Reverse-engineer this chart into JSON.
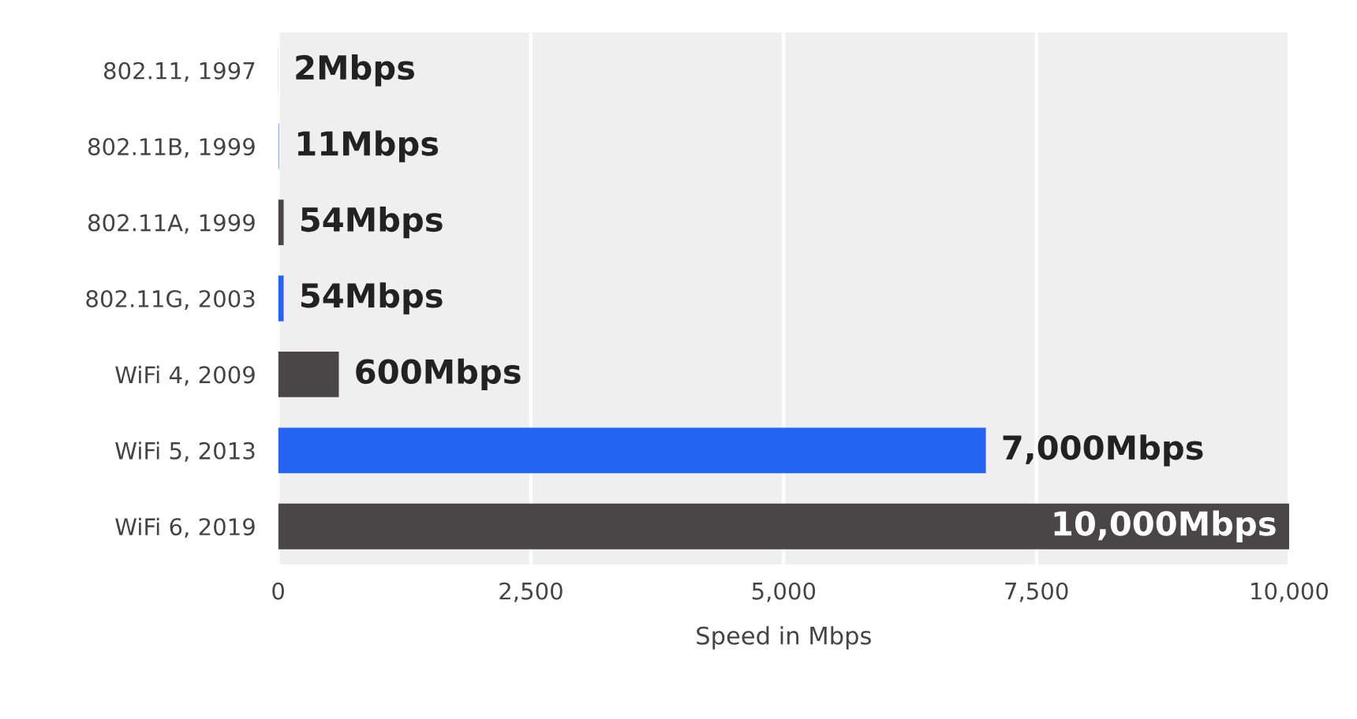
{
  "chart_data": {
    "type": "bar",
    "orientation": "horizontal",
    "xlabel": "Speed in Mbps",
    "categories": [
      "802.11, 1997",
      "802.11B, 1999",
      "802.11A, 1999",
      "802.11G, 2003",
      "WiFi 4, 2009",
      "WiFi 5, 2013",
      "WiFi 6, 2019"
    ],
    "values": [
      2,
      11,
      54,
      54,
      600,
      7000,
      10000
    ],
    "colors": [
      "#4a4648",
      "#8fb2f2",
      "#4a4648",
      "#2563f5",
      "#4a4648",
      "#2563f5",
      "#4a4648"
    ],
    "value_labels": [
      "2Mbps",
      "11Mbps",
      "54Mbps",
      "54Mbps",
      "600Mbps",
      "7,000Mbps",
      "10,000Mbps"
    ],
    "xlim": [
      0,
      10000
    ],
    "xticks": [
      0,
      {
        "value": 2500,
        "label": "2,500"
      },
      {
        "value": 5000,
        "label": "5,000"
      },
      {
        "value": 7500,
        "label": "7,500"
      },
      {
        "value": 10000,
        "label": "10,000"
      }
    ],
    "grid": "x"
  }
}
